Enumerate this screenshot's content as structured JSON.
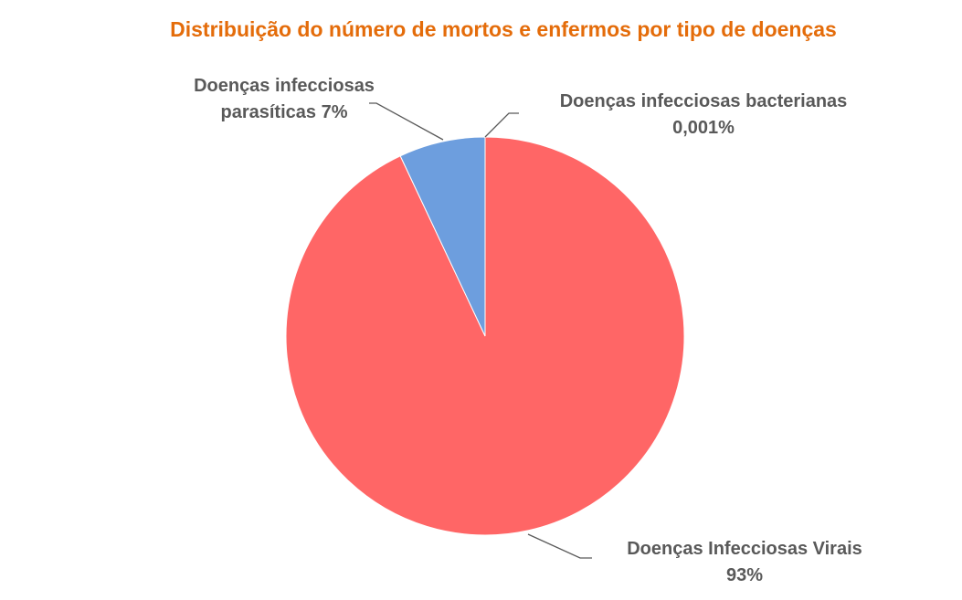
{
  "chart_data": {
    "type": "pie",
    "title": "Distribuição do número de mortos e enfermos por tipo de doenças",
    "title_color": "#E46C0A",
    "start_angle_deg": 0,
    "direction": "clockwise",
    "legend": "none",
    "slices": [
      {
        "name": "Doenças Infecciosas Virais",
        "value": 92.999,
        "label_lines": [
          "Doenças Infecciosas Virais",
          "93%"
        ],
        "color": "#FF6666"
      },
      {
        "name": "Doenças infecciosas parasíticas",
        "value": 7,
        "label_lines": [
          "Doenças infecciosas",
          "parasíticas 7%"
        ],
        "color": "#6D9EDE"
      },
      {
        "name": "Doenças infecciosas bacterianas",
        "value": 0.001,
        "label_lines": [
          "Doenças infecciosas bacterianas",
          "0,001%"
        ],
        "color": "#8BC34A"
      }
    ]
  }
}
